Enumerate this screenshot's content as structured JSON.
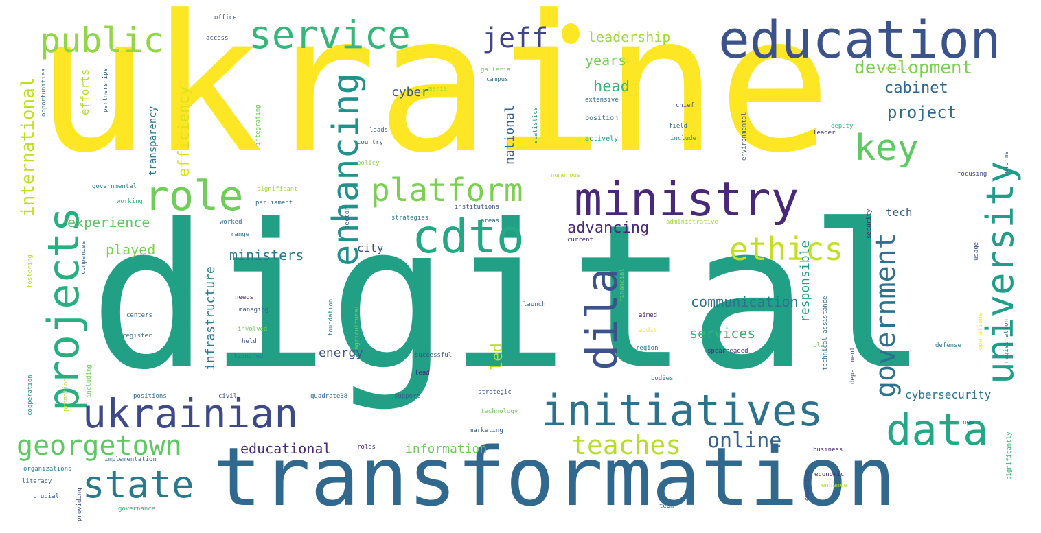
{
  "palette": {
    "yellow": "#fde725",
    "lime": "#b5de2b",
    "lightgreen": "#6ece58",
    "green": "#35b779",
    "teal": "#1f9e89",
    "cyan": "#26828e",
    "blue": "#31688e",
    "indigo": "#3e4989",
    "purple": "#482878",
    "darkpurple": "#440154",
    "background": "#ffffff"
  },
  "words": [
    {
      "text": "ukraine",
      "color": "#fde725"
    },
    {
      "text": "digital",
      "color": "#21a085"
    },
    {
      "text": "transformation",
      "color": "#31688e"
    },
    {
      "text": "education",
      "color": "#3b528b"
    },
    {
      "text": "ministry",
      "color": "#482878"
    },
    {
      "text": "initiatives",
      "color": "#2c728e"
    },
    {
      "text": "projects",
      "color": "#29af7f"
    },
    {
      "text": "ukrainian",
      "color": "#3e4989"
    },
    {
      "text": "service",
      "color": "#35b779"
    },
    {
      "text": "public",
      "color": "#90d743"
    },
    {
      "text": "enhancing",
      "color": "#21918c"
    },
    {
      "text": "cdto",
      "color": "#22a884"
    },
    {
      "text": "platform",
      "color": "#7ad151"
    },
    {
      "text": "role",
      "color": "#6ece58"
    },
    {
      "text": "key",
      "color": "#5ec962"
    },
    {
      "text": "dila",
      "color": "#3b528b"
    },
    {
      "text": "data",
      "color": "#22a884"
    },
    {
      "text": "state",
      "color": "#2a788e"
    },
    {
      "text": "university",
      "color": "#1f9e89"
    },
    {
      "text": "ethics",
      "color": "#c2df23"
    },
    {
      "text": "government",
      "color": "#2c728e"
    },
    {
      "text": "jeff",
      "color": "#414487"
    },
    {
      "text": "georgetown",
      "color": "#5ec962"
    },
    {
      "text": "teaches",
      "color": "#b5de2b"
    },
    {
      "text": "online",
      "color": "#355f8d"
    },
    {
      "text": "international",
      "color": "#bddf26"
    },
    {
      "text": "development",
      "color": "#7ad151"
    },
    {
      "text": "leadership",
      "color": "#a0da39"
    },
    {
      "text": "years",
      "color": "#6ece58"
    },
    {
      "text": "head",
      "color": "#35b779"
    },
    {
      "text": "cabinet",
      "color": "#31688e"
    },
    {
      "text": "project",
      "color": "#31688e"
    },
    {
      "text": "efficiency",
      "color": "#dae319"
    },
    {
      "text": "efforts",
      "color": "#b5de2b"
    },
    {
      "text": "transparency",
      "color": "#2a788e"
    },
    {
      "text": "experience",
      "color": "#5ec962"
    },
    {
      "text": "played",
      "color": "#7ad151"
    },
    {
      "text": "ministers",
      "color": "#2a788e"
    },
    {
      "text": "infrastructure",
      "color": "#2a788e"
    },
    {
      "text": "communication",
      "color": "#2c728e"
    },
    {
      "text": "advancing",
      "color": "#482878"
    },
    {
      "text": "national",
      "color": "#355f8d"
    },
    {
      "text": "cyber",
      "color": "#39568c"
    },
    {
      "text": "responsible",
      "color": "#1f9e89"
    },
    {
      "text": "services",
      "color": "#35b779"
    },
    {
      "text": "energy",
      "color": "#3b528b"
    },
    {
      "text": "led",
      "color": "#b5de2b"
    },
    {
      "text": "educational",
      "color": "#482878"
    },
    {
      "text": "information",
      "color": "#6ece58"
    },
    {
      "text": "cybersecurity",
      "color": "#2c728e"
    },
    {
      "text": "city",
      "color": "#414487"
    },
    {
      "text": "tech",
      "color": "#355f8d"
    },
    {
      "text": "officer",
      "color": "#3b528b"
    },
    {
      "text": "access",
      "color": "#3e4989"
    },
    {
      "text": "campus",
      "color": "#2a788e"
    },
    {
      "text": "statistics",
      "color": "#21918c"
    },
    {
      "text": "chief",
      "color": "#3b528b"
    },
    {
      "text": "field",
      "color": "#31688e"
    },
    {
      "text": "include",
      "color": "#21918c"
    },
    {
      "text": "leader",
      "color": "#482878"
    },
    {
      "text": "deputy",
      "color": "#35b779"
    },
    {
      "text": "position",
      "color": "#31688e"
    },
    {
      "text": "actively",
      "color": "#1f9e89"
    },
    {
      "text": "extensive",
      "color": "#31688e"
    },
    {
      "text": "maria",
      "color": "#a0da39"
    },
    {
      "text": "leads",
      "color": "#31688e"
    },
    {
      "text": "country",
      "color": "#3b528b"
    },
    {
      "text": "policy",
      "color": "#8fd744"
    },
    {
      "text": "integrating",
      "color": "#6ece58"
    },
    {
      "text": "focusing",
      "color": "#3e4989"
    },
    {
      "text": "numerous",
      "color": "#b5de2b"
    },
    {
      "text": "significant",
      "color": "#a0da39"
    },
    {
      "text": "parliament",
      "color": "#31688e"
    },
    {
      "text": "institutions",
      "color": "#3b528b"
    },
    {
      "text": "strategies",
      "color": "#2a788e"
    },
    {
      "text": "areas",
      "color": "#31688e"
    },
    {
      "text": "worked",
      "color": "#31688e"
    },
    {
      "text": "range",
      "color": "#2c728e"
    },
    {
      "text": "current",
      "color": "#482878"
    },
    {
      "text": "governmental",
      "color": "#2a788e"
    },
    {
      "text": "working",
      "color": "#35b779"
    },
    {
      "text": "partnerships",
      "color": "#355f8d"
    },
    {
      "text": "opportunities",
      "color": "#2c728e"
    },
    {
      "text": "security",
      "color": "#482878"
    },
    {
      "text": "administrative",
      "color": "#a0da39"
    },
    {
      "text": "needs",
      "color": "#482878"
    },
    {
      "text": "managing",
      "color": "#3b528b"
    },
    {
      "text": "involved",
      "color": "#6ece58"
    },
    {
      "text": "held",
      "color": "#3b528b"
    },
    {
      "text": "launched",
      "color": "#2a788e"
    },
    {
      "text": "centers",
      "color": "#31688e"
    },
    {
      "text": "register",
      "color": "#2c728e"
    },
    {
      "text": "aimed",
      "color": "#482878"
    },
    {
      "text": "audit",
      "color": "#fde725"
    },
    {
      "text": "region",
      "color": "#2c728e"
    },
    {
      "text": "bodies",
      "color": "#2a788e"
    },
    {
      "text": "spearheaded",
      "color": "#482878"
    },
    {
      "text": "successful",
      "color": "#3b528b"
    },
    {
      "text": "support",
      "color": "#355f8d"
    },
    {
      "text": "strategic",
      "color": "#3b528b"
    },
    {
      "text": "technology",
      "color": "#6ece58"
    },
    {
      "text": "marketing",
      "color": "#355f8d"
    },
    {
      "text": "roles",
      "color": "#482878"
    },
    {
      "text": "implementation",
      "color": "#31688e"
    },
    {
      "text": "organizations",
      "color": "#2a788e"
    },
    {
      "text": "literacy",
      "color": "#31688e"
    },
    {
      "text": "crucial",
      "color": "#355f8d"
    },
    {
      "text": "governance",
      "color": "#35b779"
    },
    {
      "text": "providing",
      "color": "#3e4989"
    },
    {
      "text": "civil",
      "color": "#3b528b"
    },
    {
      "text": "positions",
      "color": "#31688e"
    },
    {
      "text": "quadrate38",
      "color": "#31688e"
    },
    {
      "text": "cooperation",
      "color": "#21918c"
    },
    {
      "text": "promotion",
      "color": "#b5de2b"
    },
    {
      "text": "including",
      "color": "#6ece58"
    },
    {
      "text": "companies",
      "color": "#31688e"
    },
    {
      "text": "fostering",
      "color": "#b5de2b"
    },
    {
      "text": "agricultural",
      "color": "#6ece58"
    },
    {
      "text": "foundation",
      "color": "#21918c"
    },
    {
      "text": "launch",
      "color": "#31688e"
    },
    {
      "text": "financial",
      "color": "#6ece58"
    },
    {
      "text": "business",
      "color": "#482878"
    },
    {
      "text": "economic",
      "color": "#482878"
    },
    {
      "text": "ensuring",
      "color": "#3e4989"
    },
    {
      "text": "enhance",
      "color": "#b5de2b"
    },
    {
      "text": "team",
      "color": "#31688e"
    },
    {
      "text": "defense",
      "color": "#2a788e"
    },
    {
      "text": "operations",
      "color": "#fde725"
    },
    {
      "text": "registration",
      "color": "#2c728e"
    },
    {
      "text": "reforms",
      "color": "#31688e"
    },
    {
      "text": "usage",
      "color": "#3b528b"
    },
    {
      "text": "department",
      "color": "#3e4989"
    },
    {
      "text": "environmental",
      "color": "#3b528b"
    },
    {
      "text": "significantly",
      "color": "#35b779"
    },
    {
      "text": "technical assistance",
      "color": "#31688e"
    },
    {
      "text": "sector",
      "color": "#3b528b"
    },
    {
      "text": "galleria",
      "color": "#6ece58"
    },
    {
      "text": "visible",
      "color": "#b5de2b"
    },
    {
      "text": "new",
      "color": "#31688e"
    },
    {
      "text": "plan",
      "color": "#6ece58"
    },
    {
      "text": "lead",
      "color": "#482878"
    }
  ]
}
